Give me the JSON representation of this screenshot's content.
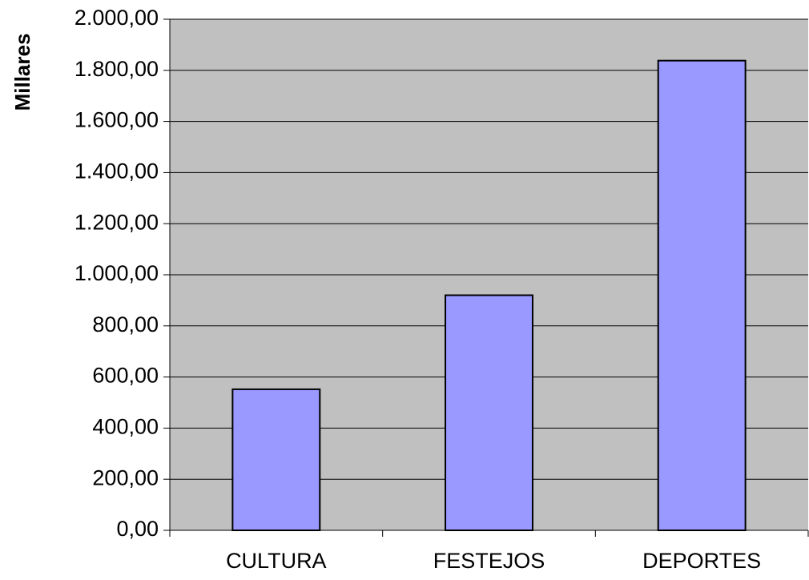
{
  "chart_data": {
    "type": "bar",
    "y_label": "Millares",
    "categories": [
      "CULTURA",
      "FESTEJOS",
      "DEPORTES"
    ],
    "values": [
      552,
      920,
      1838
    ],
    "color": "#9999ff",
    "plot_background": "#c0c0c0",
    "ylim": [
      0,
      2000
    ],
    "yticks": [
      {
        "value": 0,
        "label": "0,00"
      },
      {
        "value": 200,
        "label": "200,00"
      },
      {
        "value": 400,
        "label": "400,00"
      },
      {
        "value": 600,
        "label": "600,00"
      },
      {
        "value": 800,
        "label": "800,00"
      },
      {
        "value": 1000,
        "label": "1.000,00"
      },
      {
        "value": 1200,
        "label": "1.200,00"
      },
      {
        "value": 1400,
        "label": "1.400,00"
      },
      {
        "value": 1600,
        "label": "1.600,00"
      },
      {
        "value": 1800,
        "label": "1.800,00"
      },
      {
        "value": 2000,
        "label": "2.000,00"
      }
    ],
    "grid": true
  }
}
